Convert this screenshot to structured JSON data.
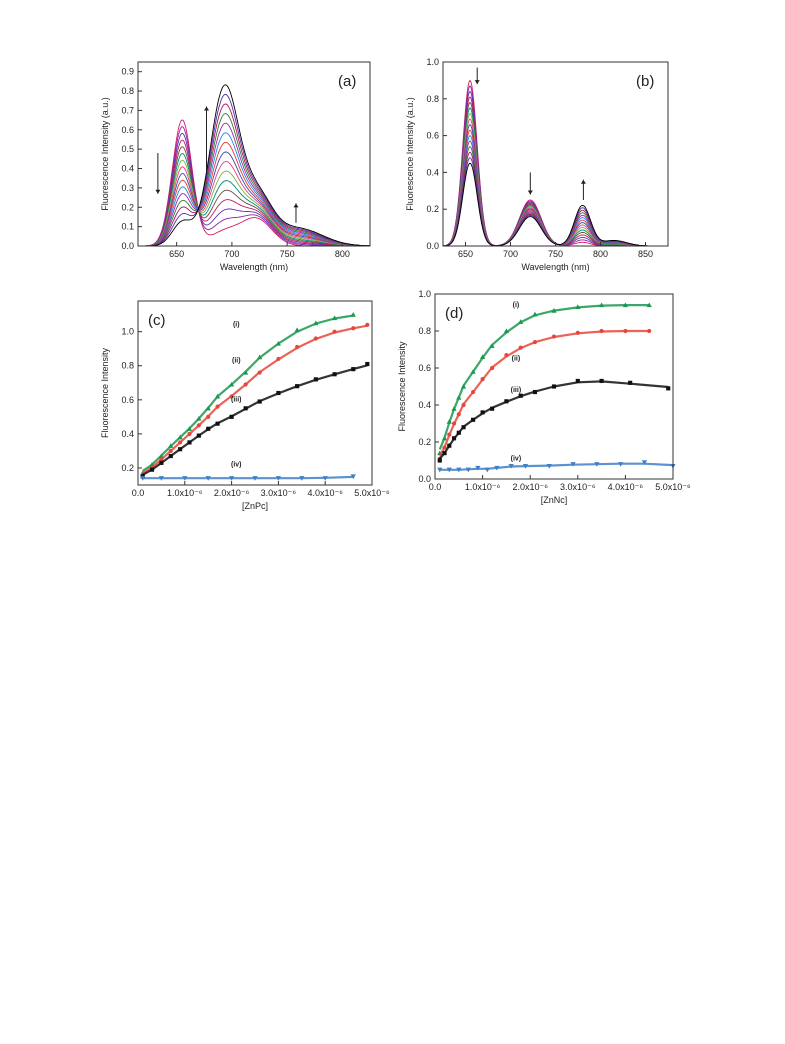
{
  "figure": {
    "background": "#ffffff"
  },
  "chart_data": [
    {
      "panel_label": "(a)",
      "type": "line",
      "xlabel": "Wavelength (nm)",
      "ylabel": "Fluorescence Intensity (a.u.)",
      "xlim": [
        615,
        825
      ],
      "ylim": [
        0,
        0.95
      ],
      "xticks": [
        650,
        700,
        750,
        800
      ],
      "yticks": [
        0.0,
        0.1,
        0.2,
        0.3,
        0.4,
        0.5,
        0.6,
        0.7,
        0.8,
        0.9
      ],
      "xtick_labels": [
        "650",
        "700",
        "750",
        "800"
      ],
      "ytick_labels": [
        "0.0",
        "0.1",
        "0.2",
        "0.3",
        "0.4",
        "0.5",
        "0.6",
        "0.7",
        "0.8",
        "0.9"
      ],
      "curve_count": 16,
      "peaks": [
        {
          "wavelength": 655,
          "start": 0.65,
          "end": 0.12,
          "width": 9
        },
        {
          "wavelength": 693,
          "start": 0.07,
          "end": 0.8,
          "width": 13
        },
        {
          "wavelength": 722,
          "start": 0.14,
          "end": 0.25,
          "width": 14
        },
        {
          "wavelength": 760,
          "start": 0.0,
          "end": 0.09,
          "width": 22
        }
      ],
      "arrows": [
        {
          "x": 633,
          "from": 0.48,
          "to": 0.27,
          "direction": "down"
        },
        {
          "x": 677,
          "from": 0.38,
          "to": 0.72,
          "direction": "up"
        },
        {
          "x": 758,
          "from": 0.12,
          "to": 0.22,
          "direction": "up"
        }
      ],
      "colors": [
        "#d81b60",
        "#8e24aa",
        "#5e35b1",
        "#c2185b",
        "#6d4c41",
        "#00897b",
        "#7cb342",
        "#ec407a",
        "#3949ab",
        "#e53935",
        "#1e88e5",
        "#9c27b0",
        "#2e7d32",
        "#ad1457",
        "#512da8",
        "#000000"
      ]
    },
    {
      "panel_label": "(b)",
      "type": "line",
      "xlabel": "Wavelength (nm)",
      "ylabel": "Fluorescence Intensity (a.u.)",
      "xlim": [
        625,
        875
      ],
      "ylim": [
        0,
        1.0
      ],
      "xticks": [
        650,
        700,
        750,
        800,
        850
      ],
      "yticks": [
        0.0,
        0.2,
        0.4,
        0.6,
        0.8,
        1.0
      ],
      "xtick_labels": [
        "650",
        "700",
        "750",
        "800",
        "850"
      ],
      "ytick_labels": [
        "0.0",
        "0.2",
        "0.4",
        "0.6",
        "0.8",
        "1.0"
      ],
      "curve_count": 16,
      "peaks": [
        {
          "wavelength": 655,
          "start": 0.9,
          "end": 0.45,
          "width": 8
        },
        {
          "wavelength": 722,
          "start": 0.25,
          "end": 0.16,
          "width": 12
        },
        {
          "wavelength": 780,
          "start": 0.02,
          "end": 0.22,
          "width": 9
        },
        {
          "wavelength": 815,
          "start": 0.0,
          "end": 0.03,
          "width": 14
        }
      ],
      "arrows": [
        {
          "x": 663,
          "from": 0.97,
          "to": 0.88,
          "direction": "down"
        },
        {
          "x": 722,
          "from": 0.4,
          "to": 0.28,
          "direction": "down"
        },
        {
          "x": 781,
          "from": 0.25,
          "to": 0.36,
          "direction": "up"
        }
      ],
      "colors": [
        "#d81b60",
        "#8e24aa",
        "#5e35b1",
        "#c2185b",
        "#6d4c41",
        "#00897b",
        "#7cb342",
        "#ec407a",
        "#3949ab",
        "#e53935",
        "#1e88e5",
        "#9c27b0",
        "#2e7d32",
        "#ad1457",
        "#512da8",
        "#000000"
      ]
    },
    {
      "panel_label": "(c)",
      "type": "scatter",
      "xlabel": "[ZnPc]",
      "ylabel": "Fluorescence Intensity",
      "xlim": [
        0,
        5e-06
      ],
      "ylim": [
        0.1,
        1.18
      ],
      "xticks": [
        0,
        1e-06,
        2e-06,
        3e-06,
        4e-06,
        5e-06
      ],
      "yticks": [
        0.2,
        0.4,
        0.6,
        0.8,
        1.0
      ],
      "xtick_labels": [
        "0.0",
        "1.0x10⁻⁶",
        "2.0x10⁻⁶",
        "3.0x10⁻⁶",
        "4.0x10⁻⁶",
        "5.0x10⁻⁶"
      ],
      "ytick_labels": [
        "0.2",
        "0.4",
        "0.6",
        "0.8",
        "1.0"
      ],
      "series": [
        {
          "label": "(i)",
          "color": "#1a9850",
          "marker": "triangle-up",
          "x": [
            1e-07,
            3e-07,
            5e-07,
            7e-07,
            9e-07,
            1.1e-06,
            1.3e-06,
            1.5e-06,
            1.7e-06,
            2e-06,
            2.3e-06,
            2.6e-06,
            3e-06,
            3.4e-06,
            3.8e-06,
            4.2e-06,
            4.6e-06
          ],
          "y": [
            0.17,
            0.22,
            0.27,
            0.33,
            0.38,
            0.43,
            0.49,
            0.55,
            0.62,
            0.69,
            0.76,
            0.85,
            0.93,
            1.01,
            1.05,
            1.08,
            1.1
          ],
          "label_x": 2.1e-06,
          "label_y": 1.03
        },
        {
          "label": "(ii)",
          "color": "#e8463b",
          "marker": "circle",
          "x": [
            1e-07,
            3e-07,
            5e-07,
            7e-07,
            9e-07,
            1.1e-06,
            1.3e-06,
            1.5e-06,
            1.7e-06,
            2e-06,
            2.3e-06,
            2.6e-06,
            3e-06,
            3.4e-06,
            3.8e-06,
            4.2e-06,
            4.6e-06,
            4.9e-06
          ],
          "y": [
            0.16,
            0.2,
            0.25,
            0.3,
            0.35,
            0.4,
            0.45,
            0.5,
            0.56,
            0.62,
            0.69,
            0.76,
            0.84,
            0.91,
            0.96,
            1.0,
            1.02,
            1.04
          ],
          "label_x": 2.1e-06,
          "label_y": 0.82
        },
        {
          "label": "(iii)",
          "color": "#111111",
          "marker": "square",
          "x": [
            1e-07,
            3e-07,
            5e-07,
            7e-07,
            9e-07,
            1.1e-06,
            1.3e-06,
            1.5e-06,
            1.7e-06,
            2e-06,
            2.3e-06,
            2.6e-06,
            3e-06,
            3.4e-06,
            3.8e-06,
            4.2e-06,
            4.6e-06,
            4.9e-06
          ],
          "y": [
            0.15,
            0.19,
            0.23,
            0.27,
            0.31,
            0.35,
            0.39,
            0.43,
            0.46,
            0.5,
            0.55,
            0.59,
            0.64,
            0.68,
            0.72,
            0.75,
            0.78,
            0.81
          ],
          "label_x": 2.1e-06,
          "label_y": 0.59
        },
        {
          "label": "(iv)",
          "color": "#3f7fc4",
          "marker": "triangle-down",
          "x": [
            1e-07,
            5e-07,
            1e-06,
            1.5e-06,
            2e-06,
            2.5e-06,
            3e-06,
            3.5e-06,
            4e-06,
            4.6e-06
          ],
          "y": [
            0.14,
            0.14,
            0.14,
            0.14,
            0.14,
            0.14,
            0.14,
            0.14,
            0.14,
            0.15
          ],
          "label_x": 2.1e-06,
          "label_y": 0.21
        }
      ]
    },
    {
      "panel_label": "(d)",
      "type": "scatter",
      "xlabel": "[ZnNc]",
      "ylabel": "Fluorescence Intensity",
      "xlim": [
        0,
        5e-06
      ],
      "ylim": [
        0,
        1.0
      ],
      "xticks": [
        0,
        1e-06,
        2e-06,
        3e-06,
        4e-06,
        5e-06
      ],
      "yticks": [
        0.0,
        0.2,
        0.4,
        0.6,
        0.8,
        1.0
      ],
      "xtick_labels": [
        "0.0",
        "1.0x10⁻⁶",
        "2.0x10⁻⁶",
        "3.0x10⁻⁶",
        "4.0x10⁻⁶",
        "5.0x10⁻⁶"
      ],
      "ytick_labels": [
        "0.0",
        "0.2",
        "0.4",
        "0.6",
        "0.8",
        "1.0"
      ],
      "series": [
        {
          "label": "(i)",
          "color": "#1a9850",
          "marker": "triangle-up",
          "x": [
            1e-07,
            2e-07,
            3e-07,
            4e-07,
            5e-07,
            6e-07,
            8e-07,
            1e-06,
            1.2e-06,
            1.5e-06,
            1.8e-06,
            2.1e-06,
            2.5e-06,
            3e-06,
            3.5e-06,
            4e-06,
            4.5e-06
          ],
          "y": [
            0.14,
            0.22,
            0.31,
            0.38,
            0.44,
            0.5,
            0.58,
            0.66,
            0.72,
            0.8,
            0.85,
            0.89,
            0.91,
            0.93,
            0.94,
            0.94,
            0.94
          ],
          "label_x": 1.7e-06,
          "label_y": 0.93
        },
        {
          "label": "(ii)",
          "color": "#e8463b",
          "marker": "circle",
          "x": [
            1e-07,
            2e-07,
            3e-07,
            4e-07,
            5e-07,
            6e-07,
            8e-07,
            1e-06,
            1.2e-06,
            1.5e-06,
            1.8e-06,
            2.1e-06,
            2.5e-06,
            3e-06,
            3.5e-06,
            4e-06,
            4.5e-06
          ],
          "y": [
            0.11,
            0.17,
            0.24,
            0.3,
            0.35,
            0.4,
            0.47,
            0.54,
            0.6,
            0.67,
            0.71,
            0.74,
            0.77,
            0.79,
            0.8,
            0.8,
            0.8
          ],
          "label_x": 1.7e-06,
          "label_y": 0.64
        },
        {
          "label": "(iii)",
          "color": "#111111",
          "marker": "square",
          "x": [
            1e-07,
            2e-07,
            3e-07,
            4e-07,
            5e-07,
            6e-07,
            8e-07,
            1e-06,
            1.2e-06,
            1.5e-06,
            1.8e-06,
            2.1e-06,
            2.5e-06,
            3e-06,
            3.5e-06,
            4.1e-06,
            4.9e-06
          ],
          "y": [
            0.1,
            0.14,
            0.18,
            0.22,
            0.25,
            0.28,
            0.32,
            0.36,
            0.38,
            0.42,
            0.45,
            0.47,
            0.5,
            0.53,
            0.53,
            0.52,
            0.49
          ],
          "label_x": 1.7e-06,
          "label_y": 0.47
        },
        {
          "label": "(iv)",
          "color": "#3f7fc4",
          "marker": "triangle-down",
          "x": [
            1e-07,
            3e-07,
            5e-07,
            7e-07,
            9e-07,
            1.1e-06,
            1.3e-06,
            1.6e-06,
            1.9e-06,
            2.4e-06,
            2.9e-06,
            3.4e-06,
            3.9e-06,
            4.4e-06,
            5e-06
          ],
          "y": [
            0.05,
            0.05,
            0.05,
            0.05,
            0.06,
            0.05,
            0.06,
            0.07,
            0.07,
            0.07,
            0.08,
            0.08,
            0.08,
            0.09,
            0.07
          ],
          "label_x": 1.7e-06,
          "label_y": 0.1
        }
      ]
    }
  ]
}
